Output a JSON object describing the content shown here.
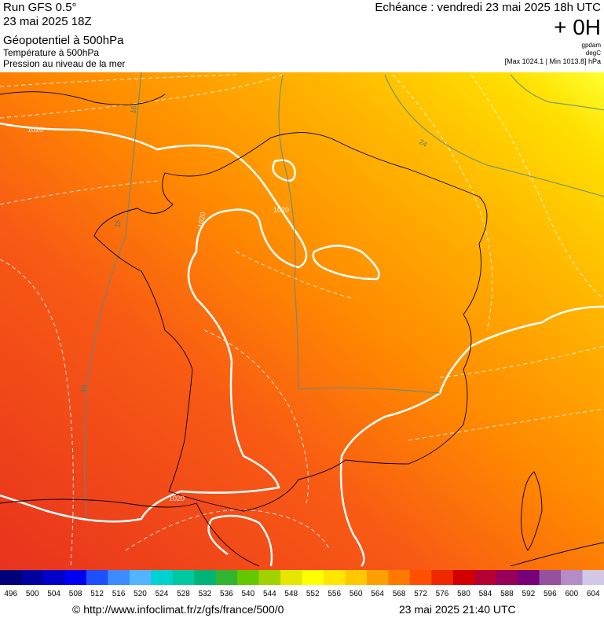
{
  "header": {
    "run": "Run GFS 0.5°",
    "run_date": "23 mai 2025 18Z",
    "title": "Géopotentiel à 500hPa",
    "subtitle1": "Température à 500hPa",
    "subtitle2": "Pression au niveau de la mer",
    "echeance": "Echéance : vendredi 23 mai 2025 18h UTC",
    "offset": "+ 0H",
    "unit1": "gpdam",
    "unit2": "degC",
    "minmax": "[Max 1024.1 | Min 1013.8] hPa"
  },
  "map": {
    "contour_labels": [
      "1020",
      "1020",
      "1020",
      "1020",
      "16",
      "16",
      "18",
      "24"
    ]
  },
  "legend": {
    "values": [
      496,
      500,
      504,
      508,
      512,
      516,
      520,
      524,
      528,
      532,
      536,
      540,
      544,
      548,
      552,
      556,
      560,
      564,
      568,
      572,
      576,
      580,
      584,
      588,
      592,
      596,
      600,
      604
    ],
    "colors": [
      "#00007a",
      "#0000a0",
      "#0000c8",
      "#0000f0",
      "#1e50ff",
      "#3c8cff",
      "#50b4ff",
      "#00d2d2",
      "#00c8a0",
      "#00b478",
      "#32b432",
      "#64c800",
      "#a0d200",
      "#e6e600",
      "#ffff00",
      "#ffe600",
      "#ffc800",
      "#ffa000",
      "#ff7800",
      "#ff5000",
      "#f02800",
      "#d20000",
      "#b40032",
      "#96005a",
      "#780078",
      "#9650a0",
      "#b48cc8",
      "#d2c8e6"
    ]
  },
  "footer": {
    "url": "© http://www.infoclimat.fr/z/gfs/france/500/0",
    "timestamp": "23 mai 2025 21:40 UTC"
  }
}
